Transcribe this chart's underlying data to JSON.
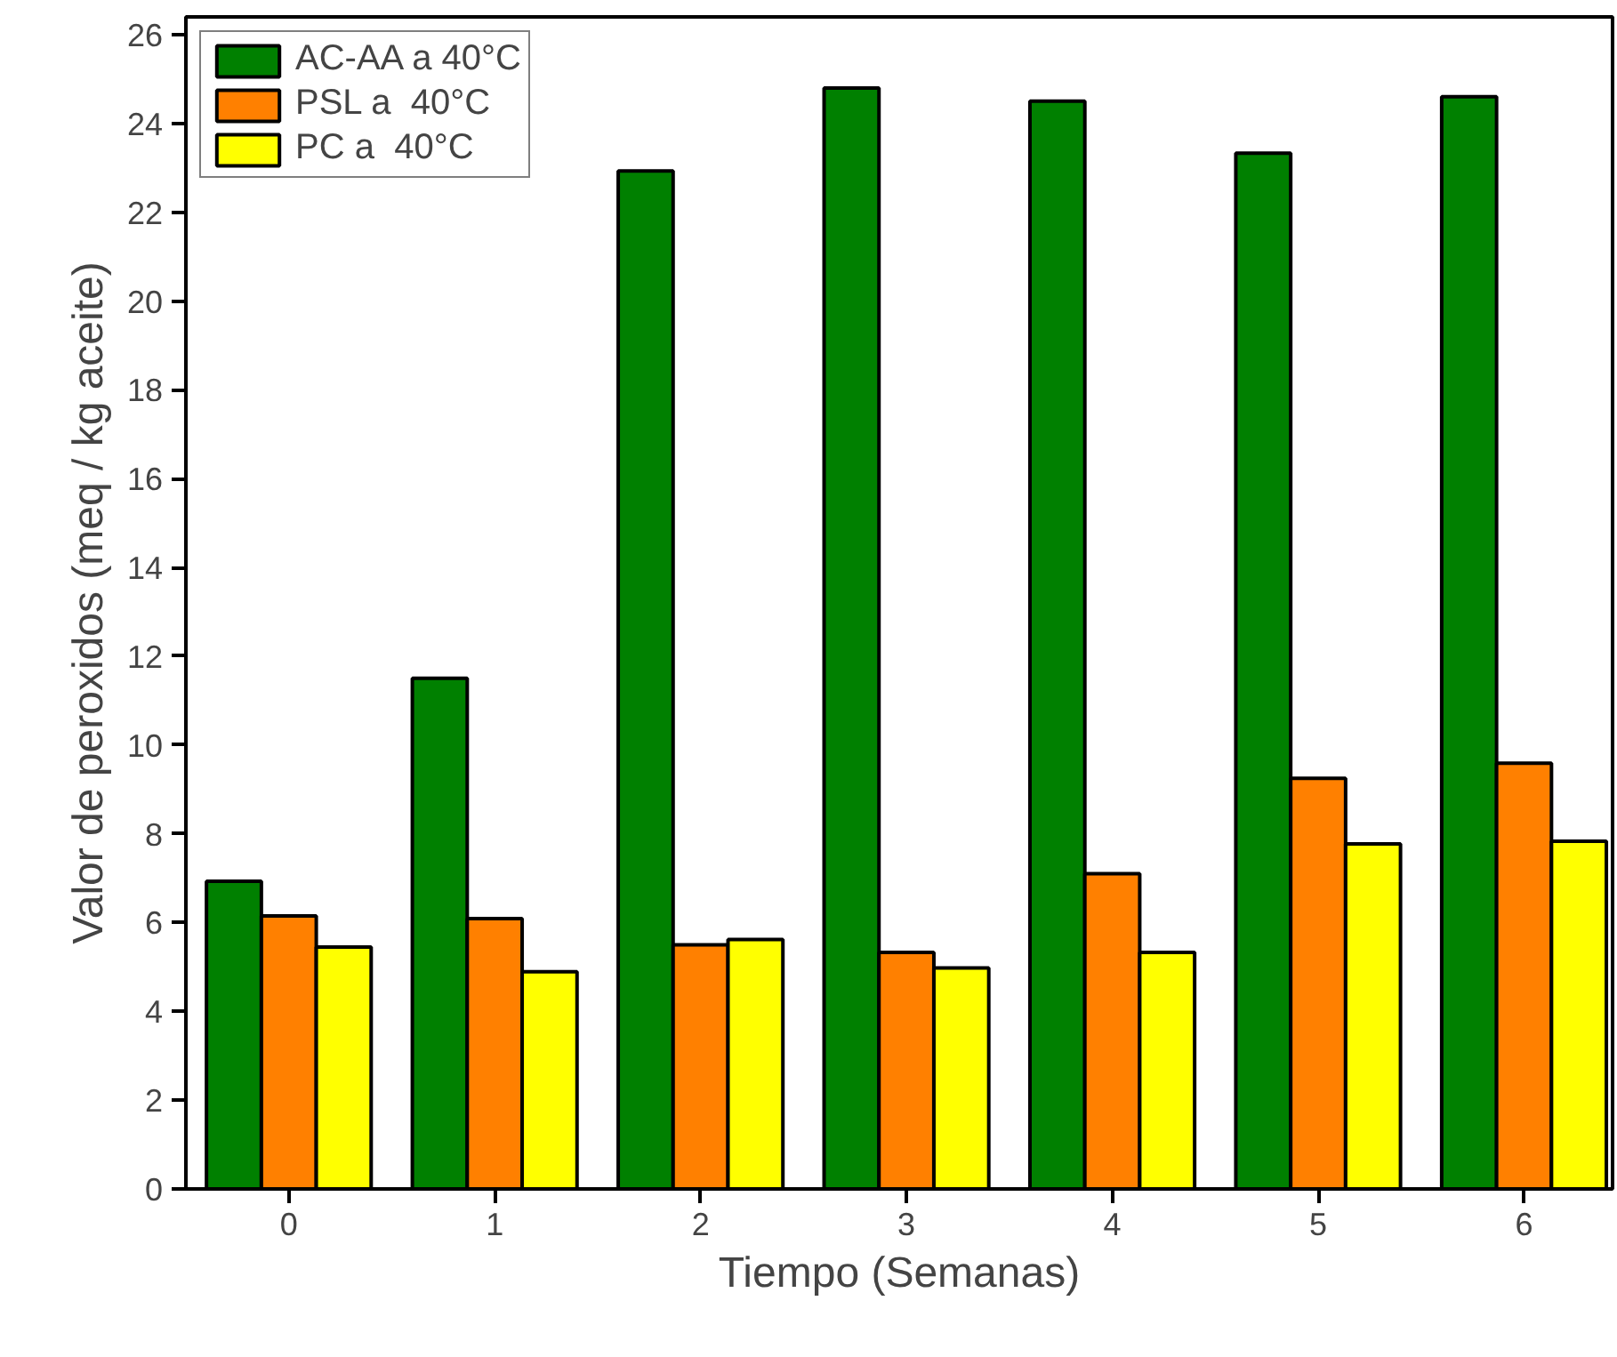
{
  "chart_data": {
    "type": "bar",
    "xlabel": "Tiempo (Semanas)",
    "ylabel": "Valor de peroxidos (meq / kg aceite)",
    "x": [
      0,
      1,
      2,
      3,
      4,
      5,
      6
    ],
    "series": [
      {
        "name": "AC-AA a 40°C",
        "color": "#008000",
        "values": [
          6.93,
          11.5,
          22.93,
          24.8,
          24.5,
          23.33,
          24.6
        ]
      },
      {
        "name": "PSL a  40°C",
        "color": "#ff8000",
        "values": [
          6.15,
          6.09,
          5.5,
          5.33,
          7.1,
          9.25,
          9.59
        ]
      },
      {
        "name": "PC a  40°C",
        "color": "#ffff00",
        "values": [
          5.45,
          4.89,
          5.62,
          4.98,
          5.33,
          7.77,
          7.83
        ]
      }
    ],
    "xlim": [
      -0.5,
      6.43
    ],
    "xticks": [
      0,
      1,
      2,
      3,
      4,
      5,
      6
    ],
    "ylim": [
      0,
      26.4
    ],
    "yticks": [
      0,
      2,
      4,
      6,
      8,
      10,
      12,
      14,
      16,
      18,
      20,
      22,
      24,
      26
    ],
    "grid": false,
    "legend": "top left"
  }
}
